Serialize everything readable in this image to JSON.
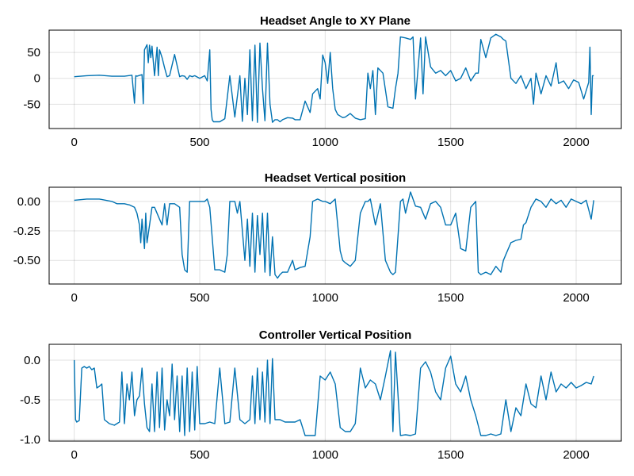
{
  "chart_data": [
    {
      "type": "line",
      "title": "Headset Angle to XY Plane",
      "xlim": [
        -100,
        2180
      ],
      "ylim": [
        -97,
        93
      ],
      "xticks": [
        0,
        500,
        1000,
        1500,
        2000
      ],
      "xtick_labels": [
        "0",
        "500",
        "1000",
        "1500",
        "2000"
      ],
      "yticks": [
        50,
        0,
        -50
      ],
      "ytick_labels": [
        "50",
        "0",
        "-50"
      ],
      "grid": true,
      "color": "#0072b2",
      "x": [
        0,
        50,
        100,
        150,
        200,
        230,
        240,
        245,
        250,
        270,
        275,
        280,
        290,
        295,
        300,
        305,
        310,
        320,
        330,
        335,
        340,
        350,
        360,
        370,
        380,
        400,
        420,
        430,
        440,
        450,
        460,
        470,
        480,
        500,
        520,
        530,
        540,
        545,
        550,
        555,
        560,
        580,
        600,
        620,
        640,
        660,
        670,
        680,
        690,
        700,
        710,
        720,
        730,
        740,
        750,
        760,
        770,
        780,
        790,
        800,
        810,
        820,
        830,
        850,
        870,
        880,
        900,
        920,
        940,
        950,
        970,
        980,
        990,
        1000,
        1010,
        1020,
        1030,
        1040,
        1050,
        1060,
        1070,
        1080,
        1100,
        1120,
        1140,
        1160,
        1170,
        1180,
        1190,
        1200,
        1210,
        1230,
        1250,
        1270,
        1280,
        1290,
        1300,
        1320,
        1340,
        1350,
        1360,
        1380,
        1390,
        1400,
        1420,
        1440,
        1460,
        1480,
        1500,
        1520,
        1540,
        1560,
        1580,
        1600,
        1610,
        1620,
        1640,
        1660,
        1680,
        1700,
        1710,
        1720,
        1740,
        1760,
        1780,
        1800,
        1820,
        1830,
        1840,
        1860,
        1880,
        1900,
        1920,
        1930,
        1950,
        1970,
        1990,
        2010,
        2030,
        2050,
        2055,
        2060,
        2065,
        2070
      ],
      "y": [
        3,
        5,
        6,
        4,
        4,
        6,
        -48,
        5,
        4,
        7,
        -49,
        55,
        65,
        30,
        64,
        40,
        62,
        5,
        60,
        5,
        55,
        40,
        20,
        3,
        5,
        46,
        3,
        5,
        4,
        -2,
        5,
        3,
        5,
        0,
        5,
        -5,
        55,
        -60,
        -80,
        -84,
        -84,
        -84,
        -78,
        5,
        -75,
        5,
        -83,
        0,
        -70,
        55,
        -82,
        64,
        -85,
        68,
        -20,
        -82,
        68,
        -50,
        -85,
        -80,
        -80,
        -84,
        -80,
        -76,
        -77,
        -80,
        -80,
        -44,
        -66,
        -30,
        -20,
        -40,
        45,
        30,
        -10,
        50,
        -20,
        -60,
        -70,
        -73,
        -76,
        -75,
        -68,
        -77,
        -80,
        -78,
        10,
        -20,
        15,
        -70,
        20,
        10,
        -55,
        -58,
        -20,
        10,
        80,
        78,
        75,
        80,
        -40,
        78,
        -30,
        80,
        22,
        10,
        15,
        5,
        15,
        -5,
        0,
        20,
        -5,
        10,
        10,
        75,
        40,
        78,
        85,
        80,
        75,
        72,
        0,
        -10,
        5,
        -20,
        0,
        -50,
        10,
        -30,
        5,
        -15,
        30,
        -10,
        -5,
        -20,
        -3,
        -8,
        -40,
        -8,
        60,
        -70,
        5,
        5
      ]
    },
    {
      "type": "line",
      "title": "Headset Vertical position",
      "xlim": [
        -100,
        2180
      ],
      "ylim": [
        -0.7,
        0.12
      ],
      "xticks": [
        0,
        500,
        1000,
        1500,
        2000
      ],
      "xtick_labels": [
        "0",
        "500",
        "1000",
        "1500",
        "2000"
      ],
      "yticks": [
        0.0,
        -0.25,
        -0.5
      ],
      "ytick_labels": [
        "0.00",
        "-0.25",
        "-0.50"
      ],
      "grid": true,
      "color": "#0072b2",
      "x": [
        0,
        50,
        100,
        150,
        170,
        200,
        220,
        240,
        250,
        260,
        265,
        270,
        280,
        285,
        290,
        300,
        310,
        320,
        340,
        350,
        360,
        370,
        380,
        390,
        400,
        420,
        430,
        440,
        450,
        460,
        480,
        500,
        520,
        530,
        540,
        560,
        580,
        600,
        610,
        620,
        640,
        650,
        660,
        680,
        690,
        700,
        710,
        720,
        730,
        740,
        750,
        760,
        770,
        780,
        790,
        800,
        810,
        820,
        830,
        850,
        870,
        880,
        900,
        920,
        940,
        950,
        970,
        990,
        1000,
        1020,
        1040,
        1060,
        1070,
        1080,
        1100,
        1120,
        1140,
        1160,
        1170,
        1180,
        1200,
        1220,
        1240,
        1260,
        1270,
        1280,
        1300,
        1310,
        1320,
        1340,
        1360,
        1380,
        1400,
        1420,
        1440,
        1460,
        1480,
        1500,
        1520,
        1540,
        1560,
        1580,
        1600,
        1610,
        1620,
        1640,
        1660,
        1680,
        1700,
        1710,
        1720,
        1740,
        1760,
        1780,
        1790,
        1800,
        1820,
        1840,
        1860,
        1880,
        1900,
        1920,
        1940,
        1960,
        1980,
        2000,
        2020,
        2040,
        2060,
        2070
      ],
      "y": [
        0.01,
        0.02,
        0.02,
        0.0,
        -0.02,
        -0.02,
        -0.03,
        -0.05,
        -0.1,
        -0.2,
        -0.35,
        -0.15,
        -0.4,
        -0.1,
        -0.35,
        -0.2,
        -0.05,
        -0.05,
        -0.15,
        -0.2,
        -0.02,
        -0.2,
        -0.02,
        -0.02,
        -0.02,
        -0.05,
        -0.45,
        -0.58,
        -0.6,
        0.0,
        0.0,
        0.0,
        0.0,
        0.02,
        -0.05,
        -0.58,
        -0.58,
        -0.6,
        -0.45,
        0.0,
        0.0,
        -0.1,
        0.0,
        -0.5,
        -0.15,
        -0.55,
        -0.1,
        -0.6,
        -0.12,
        -0.45,
        -0.1,
        -0.6,
        -0.1,
        -0.63,
        -0.3,
        -0.62,
        -0.65,
        -0.62,
        -0.6,
        -0.6,
        -0.5,
        -0.58,
        -0.56,
        -0.55,
        -0.3,
        0.0,
        0.02,
        0.0,
        0.0,
        -0.02,
        0.02,
        -0.42,
        -0.5,
        -0.52,
        -0.55,
        -0.5,
        -0.1,
        0.0,
        0.0,
        0.02,
        -0.2,
        -0.02,
        -0.5,
        -0.6,
        -0.62,
        -0.6,
        0.0,
        0.02,
        -0.1,
        0.08,
        -0.04,
        -0.05,
        -0.15,
        -0.02,
        0.0,
        -0.05,
        -0.2,
        -0.2,
        -0.1,
        -0.4,
        -0.42,
        -0.05,
        0.0,
        -0.6,
        -0.62,
        -0.6,
        -0.62,
        -0.55,
        -0.6,
        -0.5,
        -0.45,
        -0.35,
        -0.33,
        -0.32,
        -0.2,
        -0.18,
        -0.05,
        0.02,
        0.0,
        -0.05,
        0.02,
        -0.02,
        0.01,
        -0.05,
        0.02,
        0.0,
        -0.02,
        0.01,
        -0.15,
        0.01
      ]
    },
    {
      "type": "line",
      "title": "Controller Vertical Position",
      "xlim": [
        -100,
        2180
      ],
      "ylim": [
        -1.02,
        0.2
      ],
      "xticks": [
        0,
        500,
        1000,
        1500,
        2000
      ],
      "xtick_labels": [
        "0",
        "500",
        "1000",
        "1500",
        "2000"
      ],
      "yticks": [
        0.0,
        -0.5,
        -1.0
      ],
      "ytick_labels": [
        "0.0",
        "-0.5",
        "-1.0"
      ],
      "grid": true,
      "color": "#0072b2",
      "x": [
        0,
        5,
        10,
        20,
        30,
        40,
        50,
        60,
        70,
        80,
        90,
        100,
        110,
        120,
        140,
        160,
        180,
        190,
        200,
        210,
        220,
        230,
        240,
        250,
        260,
        270,
        280,
        290,
        300,
        310,
        320,
        330,
        340,
        350,
        360,
        370,
        380,
        390,
        400,
        410,
        420,
        430,
        440,
        450,
        460,
        470,
        480,
        490,
        500,
        520,
        540,
        560,
        580,
        600,
        620,
        640,
        660,
        680,
        700,
        710,
        720,
        730,
        740,
        750,
        760,
        770,
        780,
        790,
        800,
        820,
        840,
        860,
        880,
        900,
        920,
        940,
        960,
        980,
        1000,
        1020,
        1040,
        1060,
        1080,
        1100,
        1120,
        1140,
        1160,
        1180,
        1200,
        1220,
        1240,
        1260,
        1270,
        1280,
        1300,
        1320,
        1340,
        1360,
        1380,
        1400,
        1420,
        1440,
        1460,
        1480,
        1500,
        1520,
        1540,
        1560,
        1580,
        1600,
        1620,
        1640,
        1660,
        1680,
        1700,
        1720,
        1740,
        1760,
        1780,
        1800,
        1820,
        1840,
        1860,
        1880,
        1900,
        1920,
        1940,
        1960,
        1980,
        2000,
        2020,
        2040,
        2060,
        2070
      ],
      "y": [
        0.0,
        -0.75,
        -0.78,
        -0.76,
        -0.1,
        -0.08,
        -0.1,
        -0.08,
        -0.12,
        -0.1,
        -0.35,
        -0.33,
        -0.3,
        -0.75,
        -0.8,
        -0.82,
        -0.78,
        -0.15,
        -0.8,
        -0.3,
        -0.5,
        -0.15,
        -0.7,
        -0.5,
        -0.45,
        -0.1,
        -0.55,
        -0.85,
        -0.9,
        -0.3,
        -0.9,
        -0.15,
        -0.85,
        -0.1,
        -0.88,
        -0.5,
        -0.7,
        -0.05,
        -0.75,
        -0.2,
        -0.9,
        -0.2,
        -0.95,
        -0.1,
        -0.9,
        -0.15,
        -0.88,
        -0.08,
        -0.8,
        -0.8,
        -0.78,
        -0.8,
        -0.1,
        -0.8,
        -0.78,
        -0.1,
        -0.75,
        -0.8,
        -0.75,
        -0.2,
        -0.8,
        -0.1,
        -0.75,
        -0.15,
        -0.78,
        0.0,
        -0.8,
        0.02,
        -0.75,
        -0.75,
        -0.78,
        -0.78,
        -0.78,
        -0.75,
        -0.95,
        -0.95,
        -0.95,
        -0.2,
        -0.25,
        -0.15,
        -0.3,
        -0.85,
        -0.9,
        -0.9,
        -0.8,
        -0.1,
        -0.35,
        -0.25,
        -0.3,
        -0.5,
        -0.2,
        0.12,
        -0.9,
        0.1,
        -0.95,
        -0.94,
        -0.95,
        -0.93,
        -0.1,
        -0.02,
        -0.15,
        -0.4,
        -0.5,
        -0.1,
        0.05,
        -0.3,
        -0.4,
        -0.2,
        -0.5,
        -0.7,
        -0.95,
        -0.95,
        -0.93,
        -0.95,
        -0.93,
        -0.5,
        -0.9,
        -0.6,
        -0.7,
        -0.3,
        -0.55,
        -0.6,
        -0.2,
        -0.5,
        -0.15,
        -0.4,
        -0.3,
        -0.35,
        -0.28,
        -0.35,
        -0.32,
        -0.28,
        -0.3,
        -0.2
      ]
    }
  ]
}
